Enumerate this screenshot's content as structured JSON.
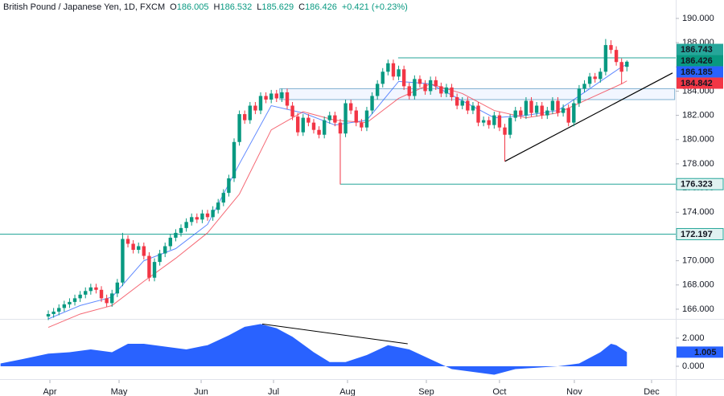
{
  "chart_data": [
    {
      "type": "candlestick",
      "title": "British Pound / Japanese Yen, 1D, FXCM",
      "ohlc_letters": [
        "O",
        "H",
        "L",
        "C"
      ],
      "change": "+0.421 (+0.23%)",
      "colors": {
        "up": "#089981",
        "down": "#f23645",
        "level": "#26a69a",
        "zone": "#7fb0d0",
        "trendline": "#000000"
      },
      "open": [
        165.4,
        165.6,
        165.8,
        166.1,
        166.4,
        166.6,
        166.9,
        167.2,
        167.5,
        167.8,
        167.6,
        166.9,
        166.5,
        167.3,
        168.2,
        171.8,
        171.4,
        170.9,
        171.2,
        170.4,
        168.6,
        169.9,
        170.6,
        171.2,
        171.9,
        172.3,
        172.7,
        173.2,
        173.6,
        173.4,
        173.9,
        173.6,
        174.2,
        174.8,
        175.6,
        176.8,
        179.8,
        182.1,
        181.6,
        182.8,
        182.4,
        183.6,
        183.3,
        183.8,
        183.4,
        183.9,
        182.8,
        181.9,
        180.6,
        181.8,
        181.4,
        180.8,
        180.4,
        181.6,
        182.0,
        181.4,
        180.5,
        183.0,
        182.4,
        181.4,
        181.0,
        182.4,
        183.6,
        184.6,
        185.6,
        186.3,
        185.2,
        185.8,
        184.4,
        183.6,
        185.0,
        184.6,
        184.0,
        184.9,
        184.4,
        183.8,
        184.3,
        183.5,
        182.8,
        183.2,
        182.4,
        182.8,
        181.4,
        181.6,
        181.2,
        182.0,
        181.0,
        180.4,
        181.8,
        182.4,
        182.0,
        183.2,
        182.2,
        182.8,
        182.0,
        182.4,
        183.2,
        182.2,
        182.6,
        181.4,
        183.0,
        184.2,
        184.6,
        185.2,
        185.0,
        185.6,
        187.8,
        187.4,
        186.4,
        186.005
      ],
      "high": [
        165.9,
        166.1,
        166.4,
        166.7,
        166.9,
        167.2,
        167.5,
        167.8,
        168.1,
        168.1,
        167.9,
        167.2,
        167.6,
        168.5,
        172.3,
        172.1,
        171.7,
        171.5,
        171.5,
        170.7,
        170.2,
        170.9,
        171.5,
        172.2,
        172.6,
        173.0,
        173.5,
        173.9,
        173.9,
        174.2,
        174.2,
        174.5,
        175.1,
        175.9,
        177.1,
        180.1,
        182.4,
        182.4,
        183.1,
        183.1,
        183.9,
        183.9,
        184.1,
        184.1,
        184.2,
        184.2,
        183.1,
        182.2,
        182.1,
        182.1,
        181.7,
        181.1,
        181.9,
        182.3,
        182.3,
        181.7,
        183.3,
        183.3,
        182.7,
        181.7,
        182.7,
        183.9,
        184.9,
        185.9,
        186.6,
        186.6,
        186.1,
        186.1,
        184.7,
        185.3,
        185.3,
        184.9,
        185.2,
        185.2,
        184.7,
        184.6,
        184.6,
        183.8,
        183.5,
        183.5,
        183.1,
        183.1,
        181.9,
        181.9,
        182.3,
        182.3,
        181.3,
        182.1,
        182.7,
        182.7,
        183.5,
        183.5,
        183.1,
        183.1,
        182.7,
        183.5,
        183.5,
        182.9,
        182.9,
        183.3,
        184.5,
        184.9,
        185.5,
        185.5,
        185.9,
        188.3,
        188.2,
        187.7,
        186.7,
        186.532
      ],
      "low": [
        165.1,
        165.3,
        165.5,
        165.8,
        166.1,
        166.3,
        166.6,
        166.9,
        167.2,
        167.3,
        166.6,
        166.2,
        166.2,
        167.0,
        167.9,
        171.1,
        170.6,
        170.6,
        170.1,
        168.3,
        168.3,
        169.6,
        170.3,
        170.9,
        171.6,
        172.0,
        172.4,
        172.9,
        173.1,
        173.1,
        173.3,
        173.3,
        173.9,
        174.5,
        175.3,
        176.5,
        179.5,
        181.3,
        181.3,
        182.1,
        182.1,
        183.0,
        183.0,
        183.1,
        183.1,
        182.5,
        181.6,
        180.3,
        180.3,
        181.1,
        180.5,
        180.1,
        180.1,
        181.3,
        181.1,
        176.3,
        180.2,
        182.1,
        181.1,
        180.7,
        180.7,
        182.1,
        183.3,
        184.3,
        185.3,
        184.9,
        184.9,
        184.1,
        183.3,
        183.3,
        184.3,
        183.7,
        183.7,
        184.1,
        183.5,
        183.5,
        183.2,
        182.5,
        182.5,
        182.1,
        182.1,
        181.1,
        181.1,
        180.9,
        180.9,
        180.7,
        178.2,
        180.1,
        181.5,
        181.7,
        181.7,
        181.9,
        181.9,
        181.7,
        181.7,
        182.1,
        181.9,
        181.9,
        181.1,
        181.1,
        182.7,
        183.9,
        184.3,
        184.7,
        184.7,
        185.3,
        187.1,
        186.1,
        184.6,
        185.629
      ],
      "close": [
        165.6,
        165.8,
        166.1,
        166.4,
        166.6,
        166.9,
        167.2,
        167.5,
        167.8,
        167.6,
        166.9,
        166.5,
        167.3,
        168.2,
        171.8,
        171.4,
        170.9,
        171.2,
        170.4,
        168.6,
        169.9,
        170.6,
        171.2,
        171.9,
        172.3,
        172.7,
        173.2,
        173.6,
        173.4,
        173.9,
        173.6,
        174.2,
        174.8,
        175.6,
        176.8,
        179.8,
        182.1,
        181.6,
        182.8,
        182.4,
        183.6,
        183.3,
        183.8,
        183.4,
        183.9,
        182.8,
        181.9,
        180.6,
        181.8,
        181.4,
        180.8,
        180.4,
        181.6,
        182.0,
        181.4,
        180.5,
        183.0,
        182.4,
        181.4,
        181.0,
        182.4,
        183.6,
        184.6,
        185.6,
        186.3,
        185.2,
        185.8,
        184.4,
        183.6,
        185.0,
        184.6,
        184.0,
        184.9,
        184.4,
        183.8,
        184.3,
        183.5,
        182.8,
        183.2,
        182.4,
        182.8,
        181.4,
        181.6,
        181.2,
        182.0,
        181.0,
        180.4,
        181.8,
        182.4,
        182.0,
        183.2,
        182.2,
        182.8,
        182.0,
        182.4,
        183.2,
        182.2,
        182.6,
        181.4,
        183.0,
        184.2,
        184.6,
        185.2,
        185.0,
        185.6,
        187.8,
        187.4,
        186.4,
        185.6,
        186.426
      ],
      "ma": [
        {
          "color": "#2962ff",
          "x": [
            0,
            6,
            12,
            18,
            24,
            30,
            36,
            42,
            48,
            54,
            60,
            66,
            72,
            78,
            84,
            90,
            96,
            102,
            108,
            109
          ],
          "values": [
            165.2,
            166.3,
            167.0,
            170.0,
            171.0,
            173.0,
            178.0,
            182.8,
            182.2,
            181.2,
            181.6,
            184.8,
            184.6,
            183.2,
            181.8,
            182.0,
            182.4,
            184.2,
            186.0,
            186.185
          ]
        },
        {
          "color": "#f23645",
          "x": [
            0,
            6,
            12,
            18,
            24,
            30,
            36,
            42,
            48,
            54,
            60,
            66,
            72,
            78,
            84,
            90,
            96,
            102,
            108,
            109
          ],
          "values": [
            164.5,
            165.6,
            166.3,
            168.3,
            170.2,
            172.3,
            175.5,
            180.8,
            182.3,
            181.6,
            181.4,
            183.4,
            184.6,
            183.8,
            182.4,
            181.8,
            182.2,
            183.4,
            184.6,
            184.842
          ]
        }
      ],
      "levels": [
        {
          "value": 186.743,
          "start": 65.9
        },
        {
          "value": 176.323,
          "start": 55
        },
        {
          "value": 172.197,
          "start": -9.1
        }
      ],
      "zone": {
        "low": 183.3,
        "high": 184.2,
        "start": 43.6,
        "end": 118
      },
      "trendline": {
        "x": [
          86,
          117.6
        ],
        "values": [
          178.2,
          185.5
        ]
      },
      "xlim": [
        -9.1,
        118.2
      ],
      "ylim": [
        165.2,
        191.52
      ],
      "xticks": [
        {
          "value": 0.3,
          "label": "Apr"
        },
        {
          "value": 13.33,
          "label": "May"
        },
        {
          "value": 28.79,
          "label": "Jun"
        },
        {
          "value": 42.43,
          "label": "Jul"
        },
        {
          "value": 56.37,
          "label": "Aug"
        },
        {
          "value": 71.22,
          "label": "Sep"
        },
        {
          "value": 85,
          "label": "Oct"
        },
        {
          "value": 99.1,
          "label": "Nov"
        },
        {
          "value": 113.65,
          "label": "Dec"
        }
      ],
      "yticks": [
        {
          "value": 166,
          "label": "166.000"
        },
        {
          "value": 168,
          "label": "168.000"
        },
        {
          "value": 170,
          "label": "170.000"
        },
        {
          "value": 172,
          "label": "172.000"
        },
        {
          "value": 174,
          "label": "174.000"
        },
        {
          "value": 176,
          "label": "176.000"
        },
        {
          "value": 178,
          "label": "178.000"
        },
        {
          "value": 180,
          "label": "180.000"
        },
        {
          "value": 182,
          "label": "182.000"
        },
        {
          "value": 184,
          "label": "184.000"
        },
        {
          "value": 186,
          "label": "186.000"
        },
        {
          "value": 188,
          "label": "188.000"
        },
        {
          "value": 190,
          "label": "190.000"
        }
      ]
    },
    {
      "type": "area",
      "color": "#2962ff",
      "x": [
        -9,
        -5,
        0,
        4,
        8,
        12,
        15,
        18,
        22,
        26,
        30,
        34,
        37,
        40,
        43,
        46,
        50,
        53,
        56,
        60,
        64,
        68,
        72,
        76,
        80,
        84,
        88,
        92,
        96,
        100,
        104,
        106,
        107,
        109
      ],
      "values": [
        0.2,
        0.5,
        0.9,
        1.0,
        1.2,
        1.0,
        1.6,
        1.6,
        1.4,
        1.2,
        1.5,
        2.2,
        2.8,
        3.0,
        2.7,
        2.1,
        1.0,
        0.3,
        0.3,
        0.8,
        1.5,
        1.2,
        0.5,
        -0.2,
        -0.4,
        -0.6,
        -0.2,
        -0.1,
        0.0,
        0.2,
        1.0,
        1.6,
        1.5,
        1.005
      ],
      "trendline": {
        "x": [
          40.3,
          67.7
        ],
        "values": [
          3.0,
          1.6
        ]
      },
      "xlim": [
        -9.1,
        118.2
      ],
      "ylim": [
        -0.8,
        3.31
      ],
      "yticks": [
        {
          "value": 0,
          "label": "0.000"
        },
        {
          "value": 2,
          "label": "2.000"
        }
      ]
    }
  ]
}
